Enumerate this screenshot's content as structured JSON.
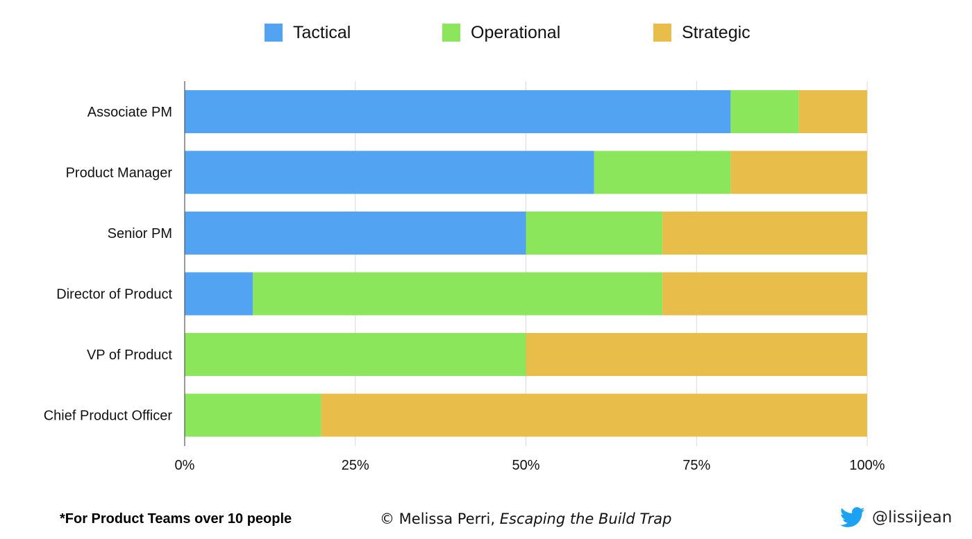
{
  "colors": {
    "tactical": "#52a3f2",
    "operational": "#8ce65c",
    "strategic": "#e8bd4a",
    "grid": "#d9d9d9",
    "axis": "#555555",
    "twitter": "#1da1f2"
  },
  "chart_data": {
    "type": "bar",
    "orientation": "horizontal",
    "stacked": true,
    "title": "",
    "xlabel": "",
    "ylabel": "",
    "xlim": [
      0,
      100
    ],
    "grid": true,
    "legend_position": "top",
    "x_ticks": [
      "0%",
      "25%",
      "50%",
      "75%",
      "100%"
    ],
    "x_tick_values": [
      0,
      25,
      50,
      75,
      100
    ],
    "categories": [
      "Associate PM",
      "Product Manager",
      "Senior PM",
      "Director of Product",
      "VP of Product",
      "Chief Product Officer"
    ],
    "series": [
      {
        "name": "Tactical",
        "key": "tactical",
        "values": [
          80,
          60,
          50,
          10,
          0,
          0
        ]
      },
      {
        "name": "Operational",
        "key": "operational",
        "values": [
          10,
          20,
          20,
          60,
          50,
          20
        ]
      },
      {
        "name": "Strategic",
        "key": "strategic",
        "values": [
          10,
          20,
          30,
          30,
          50,
          80
        ]
      }
    ]
  },
  "footer": {
    "note": "*For Product Teams over 10 people",
    "credit_prefix": "© Melissa Perri, ",
    "credit_book": "Escaping the Build Trap",
    "twitter_handle": "@lissijean"
  }
}
